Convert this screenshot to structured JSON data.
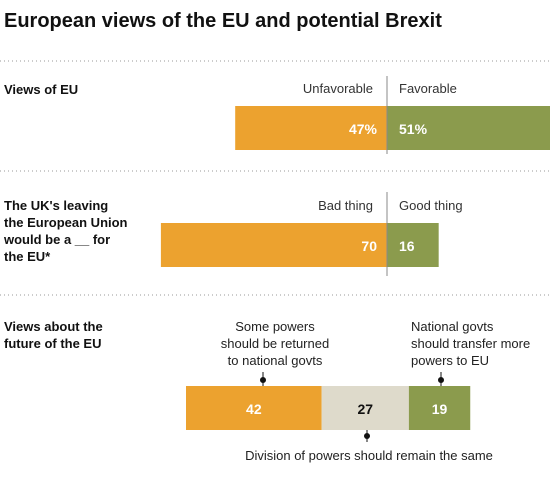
{
  "colors": {
    "unfavorable": "#ECA22F",
    "favorable": "#8B9B4D",
    "neutral": "#DEDACB",
    "divider": "#8A8A8A",
    "text_on_bar": "#FFFFFF",
    "text_on_neutral": "#111111"
  },
  "title": "European views of the EU and potential Brexit",
  "chart_data": [
    {
      "type": "bar",
      "orientation": "horizontal-diverging",
      "section_label": [
        "Views of EU"
      ],
      "left_header": "Unfavorable",
      "right_header": "Favorable",
      "series": [
        {
          "name": "Unfavorable",
          "value": 47,
          "label": "47%",
          "side": "left"
        },
        {
          "name": "Favorable",
          "value": 51,
          "label": "51%",
          "side": "right"
        }
      ]
    },
    {
      "type": "bar",
      "orientation": "horizontal-diverging",
      "section_label": [
        "The UK's leaving",
        "the European Union",
        "would be a __ for",
        "the EU*"
      ],
      "left_header": "Bad thing",
      "right_header": "Good thing",
      "series": [
        {
          "name": "Bad thing",
          "value": 70,
          "label": "70",
          "side": "left"
        },
        {
          "name": "Good thing",
          "value": 16,
          "label": "16",
          "side": "right"
        }
      ]
    },
    {
      "type": "bar",
      "orientation": "horizontal-stacked",
      "section_label": [
        "Views about the",
        "future of the EU"
      ],
      "series": [
        {
          "name": "Some powers should be returned to national govts",
          "value": 42,
          "label": "42",
          "annotation": [
            "Some powers",
            "should be returned",
            "to national govts"
          ]
        },
        {
          "name": "Division of powers should remain the same",
          "value": 27,
          "label": "27",
          "annotation": [
            "Division of powers should remain the same"
          ]
        },
        {
          "name": "National govts should transfer more powers to EU",
          "value": 19,
          "label": "19",
          "annotation": [
            "National govts",
            "should transfer more",
            "powers to EU"
          ]
        }
      ]
    }
  ]
}
